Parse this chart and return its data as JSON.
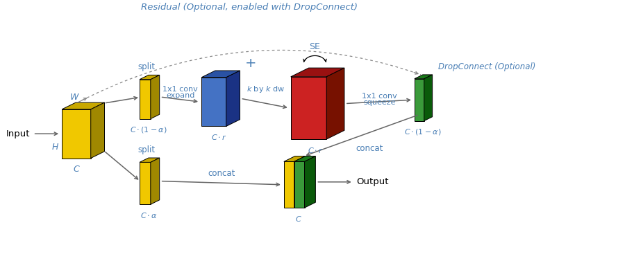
{
  "bg_color": "#ffffff",
  "title_text": "Residual (Optional, enabled with DropConnect)",
  "title_color": "#4a7fb5",
  "plus_text": "+",
  "dropconnect_text": "DropConnect (Optional)",
  "se_text": "SE",
  "concat_text": "concat",
  "output_text": "Output",
  "input_text": "Input",
  "arrow_color": "#666666",
  "text_color": "#4a7fb5",
  "black": "#000000",
  "gray": "#888888",
  "yellow_face": "#f0c800",
  "yellow_top": "#c8a800",
  "yellow_side": "#a08800",
  "blue_face": "#4472c4",
  "blue_top": "#2a52a4",
  "blue_side": "#1a3284",
  "red_face": "#cc2222",
  "red_top": "#991111",
  "red_side": "#771100",
  "green_face": "#3a9a3a",
  "green_top": "#1a7a1a",
  "green_side": "#0a5a0a",
  "conv1x1_expand_line1": "1x1 conv",
  "conv1x1_expand_line2": "expand",
  "kbyk_dw": "k by k dw",
  "conv1x1_squeeze_line1": "1x1 conv",
  "conv1x1_squeeze_line2": "squeeze"
}
